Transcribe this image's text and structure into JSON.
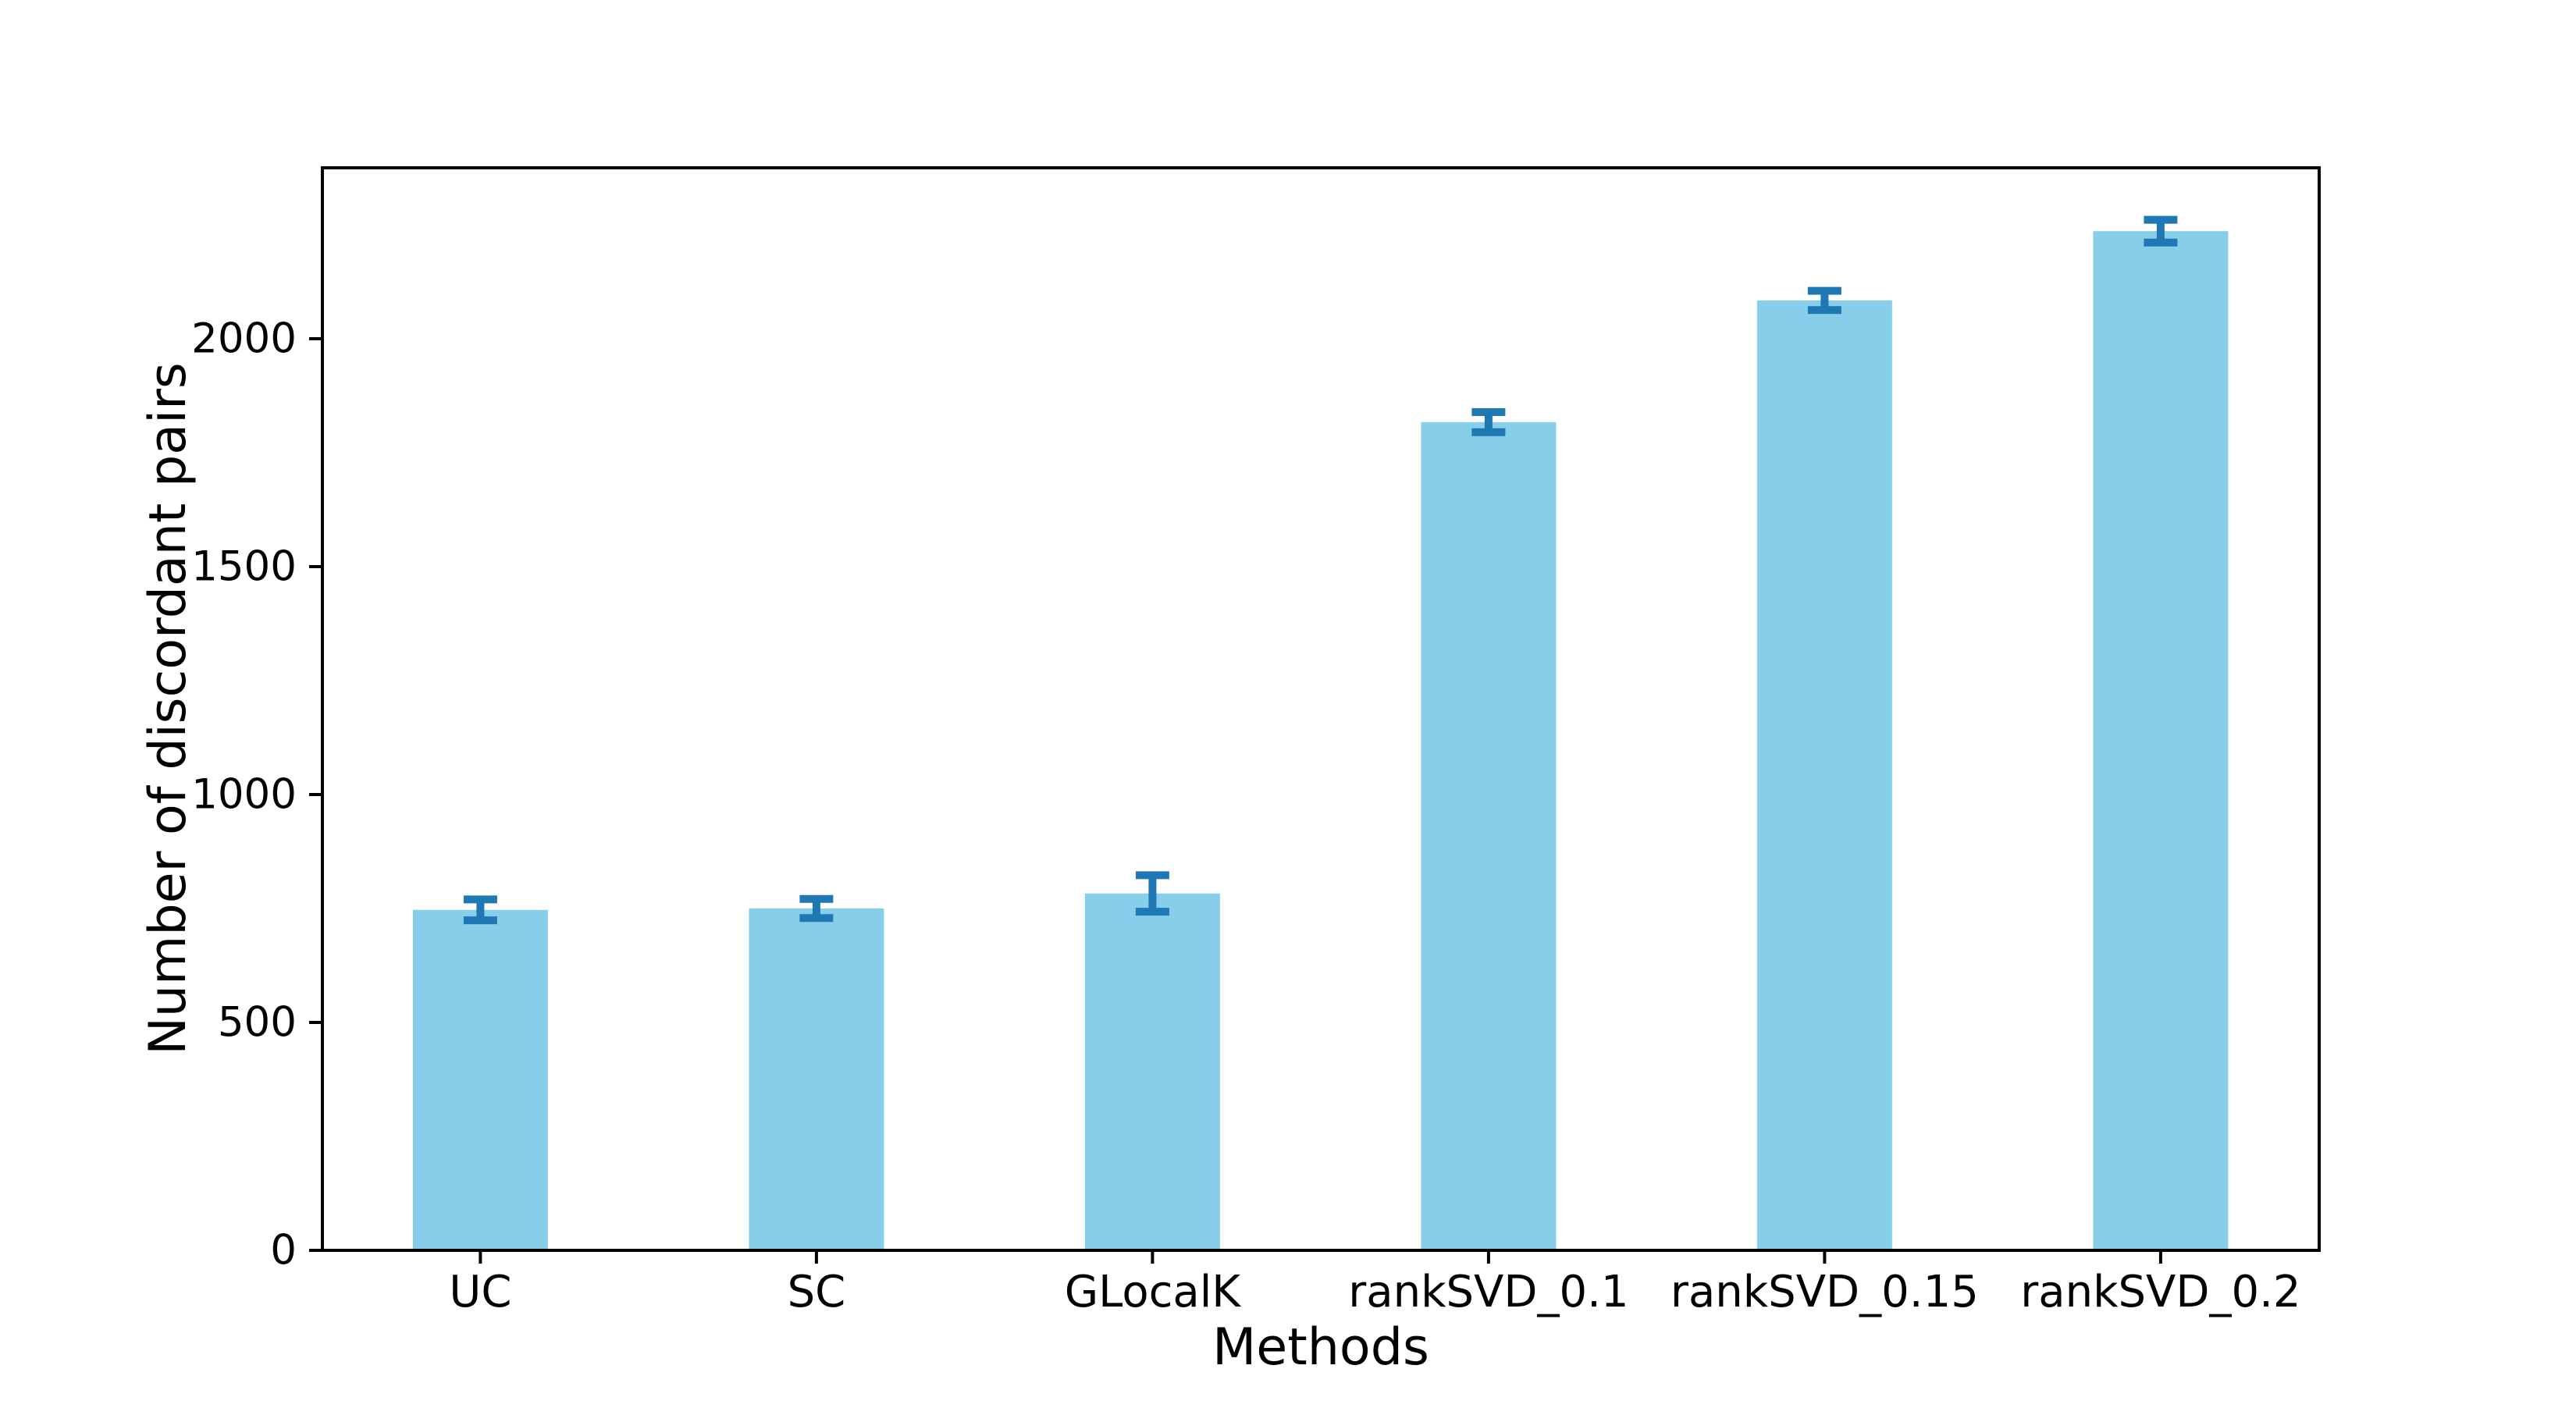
{
  "figure": {
    "background": "#ffffff"
  },
  "chart_data": {
    "type": "bar",
    "title": "",
    "xlabel": "Methods",
    "ylabel": "Number of discordant pairs",
    "categories": [
      "UC",
      "SC",
      "GLocalK",
      "rankSVD_0.1",
      "rankSVD_0.15",
      "rankSVD_0.2"
    ],
    "values": [
      747,
      750,
      783,
      1817,
      2084,
      2236
    ],
    "error_bars": [
      23,
      21,
      40,
      22,
      21,
      25
    ],
    "yticks": [
      0,
      500,
      1000,
      1500,
      2000
    ],
    "ylim": [
      0,
      2375
    ],
    "grid": false,
    "legend": "none",
    "bar_color": "#87CEEB",
    "error_color": "#1F77B4",
    "axis_color": "#000000",
    "text_color": "#000000"
  }
}
